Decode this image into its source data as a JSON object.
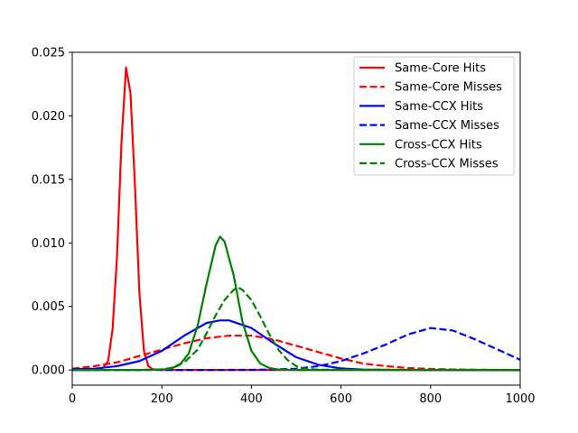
{
  "chart_data": {
    "type": "line",
    "title": "",
    "xlabel": "",
    "ylabel": "",
    "xlim": [
      0,
      1000
    ],
    "ylim": [
      -0.0012,
      0.025
    ],
    "xticks": [
      0,
      200,
      400,
      600,
      800,
      1000
    ],
    "xtick_labels": [
      "0",
      "200",
      "400",
      "600",
      "800",
      "1000"
    ],
    "yticks": [
      0.0,
      0.005,
      0.01,
      0.015,
      0.02,
      0.025
    ],
    "ytick_labels": [
      "0.000",
      "0.005",
      "0.010",
      "0.015",
      "0.020",
      "0.025"
    ],
    "grid": false,
    "legend_position": "top-right",
    "series": [
      {
        "name": "Same-Core Hits",
        "color": "#ff0000",
        "dash": "solid",
        "x": [
          0,
          20,
          40,
          60,
          70,
          80,
          90,
          100,
          110,
          120,
          130,
          140,
          150,
          160,
          170,
          180,
          200,
          1000
        ],
        "y": [
          0,
          0,
          0,
          0.0001,
          0.0002,
          0.0007,
          0.0032,
          0.009,
          0.018,
          0.0238,
          0.0218,
          0.0145,
          0.006,
          0.0015,
          0.0003,
          5e-05,
          0,
          0
        ]
      },
      {
        "name": "Same-Core Misses",
        "color": "#ff0000",
        "dash": "dashed",
        "x": [
          0,
          50,
          100,
          150,
          200,
          250,
          300,
          350,
          400,
          450,
          500,
          550,
          600,
          650,
          700,
          750,
          800,
          850,
          900,
          950,
          1000
        ],
        "y": [
          0.0001,
          0.0003,
          0.0006,
          0.0011,
          0.0016,
          0.0021,
          0.0025,
          0.0027,
          0.0027,
          0.0024,
          0.0019,
          0.0014,
          0.0009,
          0.0005,
          0.0003,
          0.00015,
          8e-05,
          4e-05,
          2e-05,
          1e-05,
          0
        ]
      },
      {
        "name": "Same-CCX Hits",
        "color": "#0000ff",
        "dash": "solid",
        "x": [
          0,
          50,
          100,
          150,
          200,
          250,
          300,
          330,
          350,
          400,
          450,
          500,
          550,
          600,
          650,
          700,
          800,
          1000
        ],
        "y": [
          5e-05,
          0.0001,
          0.0003,
          0.0007,
          0.0015,
          0.0027,
          0.0037,
          0.0039,
          0.0039,
          0.0033,
          0.0021,
          0.001,
          0.0004,
          0.00012,
          3e-05,
          1e-05,
          0,
          0
        ]
      },
      {
        "name": "Same-CCX Misses",
        "color": "#0000ff",
        "dash": "dashed",
        "x": [
          0,
          200,
          300,
          400,
          450,
          500,
          550,
          600,
          650,
          700,
          750,
          800,
          850,
          900,
          950,
          1000
        ],
        "y": [
          0,
          0,
          0,
          1e-05,
          4e-05,
          0.0001,
          0.0003,
          0.0007,
          0.0013,
          0.002,
          0.0028,
          0.0033,
          0.0031,
          0.0024,
          0.0016,
          0.0008
        ]
      },
      {
        "name": "Cross-CCX Hits",
        "color": "#008000",
        "dash": "solid",
        "x": [
          0,
          150,
          200,
          220,
          240,
          260,
          280,
          300,
          320,
          330,
          340,
          360,
          380,
          400,
          420,
          440,
          460,
          480,
          500,
          1000
        ],
        "y": [
          0,
          0,
          3e-05,
          0.0001,
          0.0004,
          0.0013,
          0.0035,
          0.0068,
          0.0098,
          0.0105,
          0.0101,
          0.0075,
          0.0038,
          0.0015,
          0.0005,
          0.00015,
          4e-05,
          1e-05,
          0,
          0
        ]
      },
      {
        "name": "Cross-CCX Misses",
        "color": "#008000",
        "dash": "dashed",
        "x": [
          0,
          150,
          180,
          200,
          220,
          250,
          280,
          300,
          320,
          340,
          360,
          370,
          380,
          400,
          420,
          440,
          460,
          480,
          500,
          520,
          550,
          1000
        ],
        "y": [
          0,
          0,
          2e-05,
          5e-05,
          0.00015,
          0.0006,
          0.0016,
          0.0029,
          0.0043,
          0.0055,
          0.0063,
          0.0065,
          0.0063,
          0.0055,
          0.0042,
          0.0028,
          0.0016,
          0.0008,
          0.0003,
          0.0001,
          2e-05,
          0
        ]
      }
    ]
  }
}
